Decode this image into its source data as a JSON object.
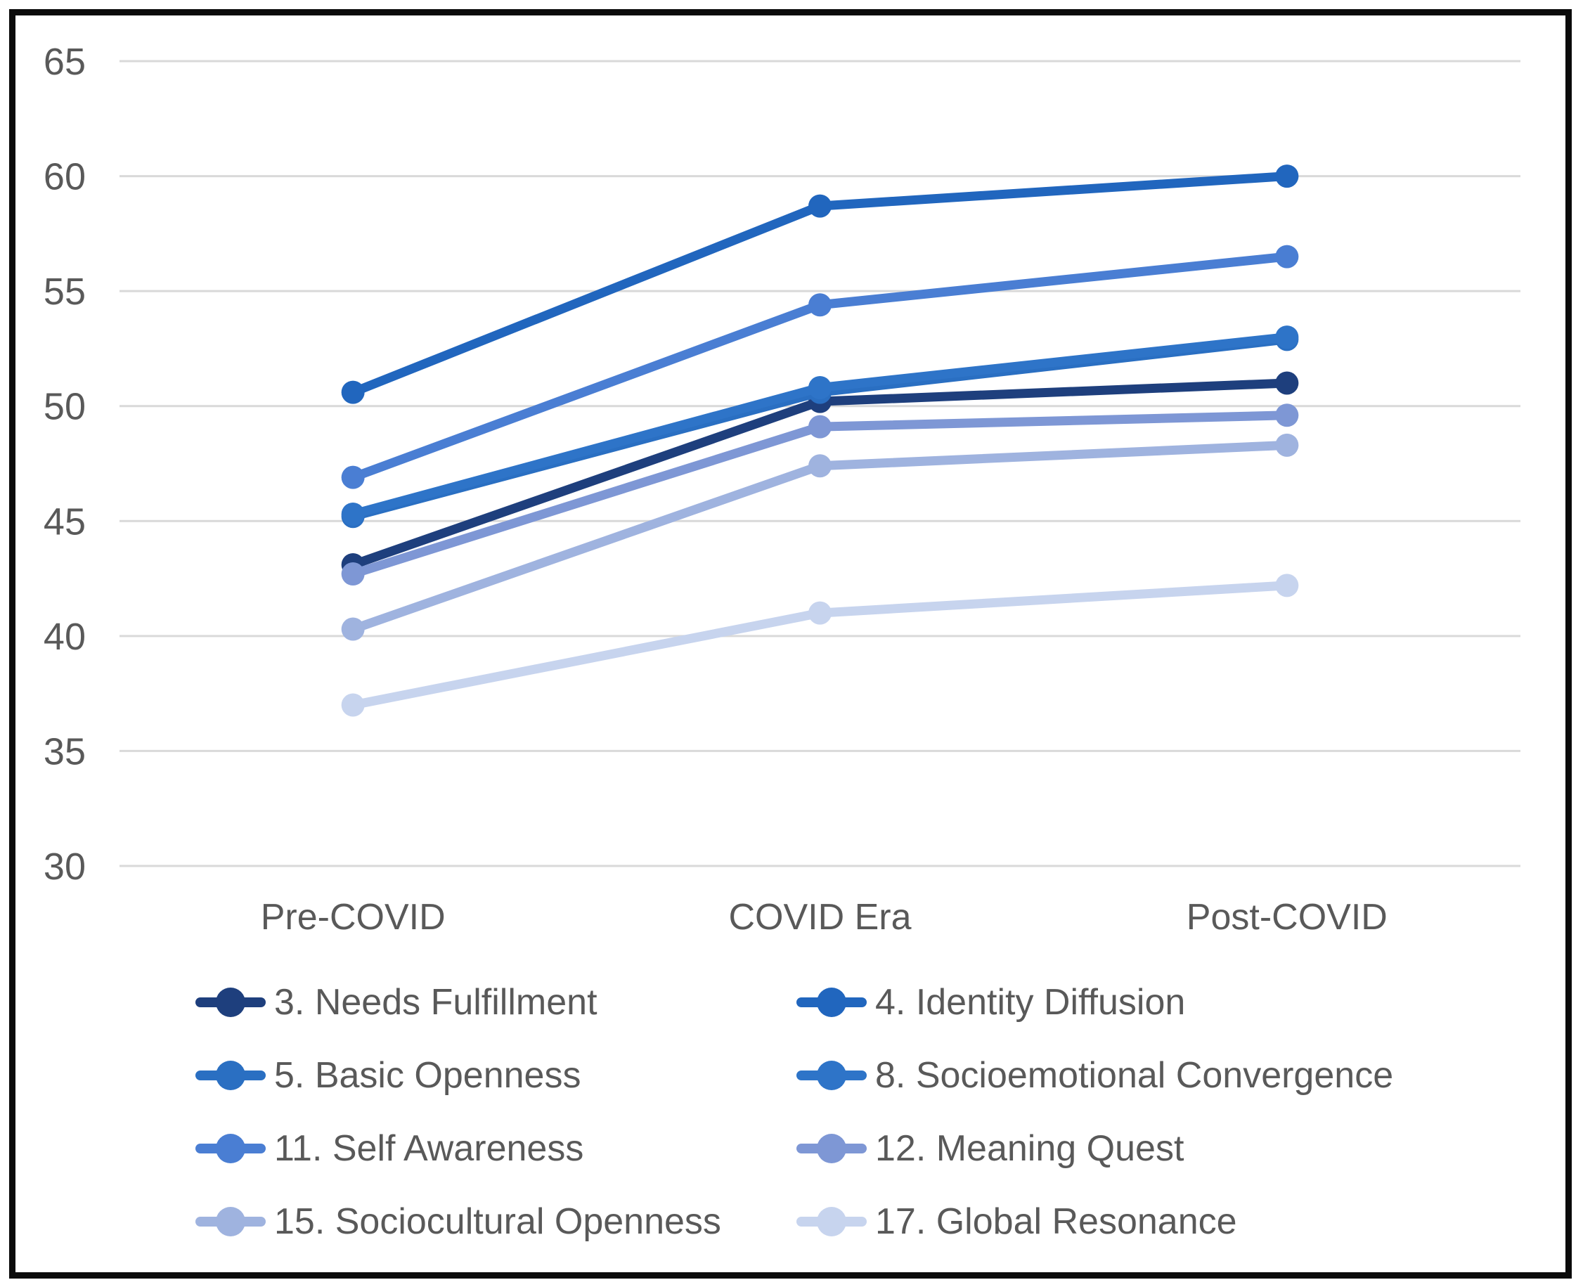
{
  "chart_data": {
    "type": "line",
    "title": "",
    "xlabel": "",
    "ylabel": "",
    "categories": [
      "Pre-COVID",
      "COVID Era",
      "Post-COVID"
    ],
    "series": [
      {
        "name": "3. Needs Fulfillment",
        "color": "#1E3F7D",
        "values": [
          43.1,
          50.2,
          51.0
        ]
      },
      {
        "name": "4. Identity Diffusion",
        "color": "#2166BE",
        "values": [
          50.6,
          58.7,
          60.0
        ]
      },
      {
        "name": "5. Basic Openness",
        "color": "#2A6FC2",
        "values": [
          45.2,
          50.6,
          52.9
        ]
      },
      {
        "name": "8. Socioemotional Convergence",
        "color": "#2E74C8",
        "values": [
          45.3,
          50.8,
          53.0
        ]
      },
      {
        "name": "11. Self Awareness",
        "color": "#4A7ED3",
        "values": [
          46.9,
          54.4,
          56.5
        ]
      },
      {
        "name": "12. Meaning Quest",
        "color": "#7E97D5",
        "values": [
          42.7,
          49.1,
          49.6
        ]
      },
      {
        "name": "15. Sociocultural Openness",
        "color": "#9FB3DF",
        "values": [
          40.3,
          47.4,
          48.3
        ]
      },
      {
        "name": "17. Global Resonance",
        "color": "#C7D4EE",
        "values": [
          37.0,
          41.0,
          42.2
        ]
      }
    ],
    "ylim": [
      30,
      65
    ],
    "yticks": [
      65,
      60,
      55,
      50,
      45,
      40,
      35,
      30
    ],
    "grid": "horizontal",
    "legend_position": "bottom",
    "legend_columns": 2
  },
  "styles": {
    "text_color": "#595959",
    "grid_color": "#D9D9D9",
    "background": "#FFFFFF",
    "border_color": "#0B0B0B"
  }
}
